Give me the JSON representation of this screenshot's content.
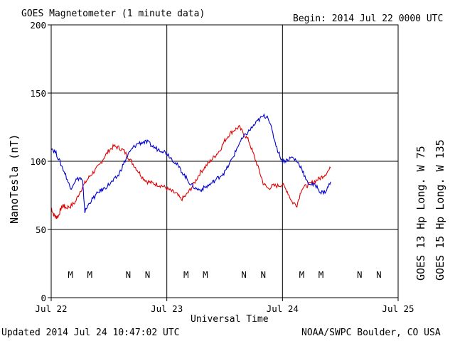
{
  "header": {
    "title": "GOES Magnetometer (1 minute data)",
    "begin": "Begin:  2014 Jul 22 0000 UTC"
  },
  "footer": {
    "updated": "Updated 2014 Jul 24 10:47:02 UTC",
    "credit": "NOAA/SWPC Boulder, CO USA"
  },
  "colors": {
    "goes13": "#e00000",
    "goes15": "#0000d0",
    "axis": "#000000"
  },
  "chart_data": {
    "type": "line",
    "ylabel": "NanoTesla (nT)",
    "xlabel": "Universal Time",
    "ylim": [
      0,
      200
    ],
    "xlim": [
      0,
      72
    ],
    "x_units": "hours since 2014 Jul 22 0000 UTC",
    "yticks": [
      0,
      50,
      100,
      150,
      200
    ],
    "xticks": [
      {
        "x": 0,
        "label": "Jul 22"
      },
      {
        "x": 24,
        "label": "Jul 23"
      },
      {
        "x": 48,
        "label": "Jul 24"
      },
      {
        "x": 72,
        "label": "Jul 25"
      }
    ],
    "grid": true,
    "legend_position": "right (vertical)",
    "series": [
      {
        "name": "GOES 13 Hp  Long. W 75",
        "color": "#e00000",
        "x": [
          0,
          0.5,
          1.0,
          1.5,
          2.0,
          2.5,
          3,
          4,
          5,
          6,
          7,
          8,
          9,
          10,
          11,
          12,
          13,
          14,
          15,
          16,
          17,
          18,
          19,
          20,
          21,
          22,
          23,
          24,
          25,
          26,
          27,
          28,
          29,
          30,
          31,
          32,
          33,
          34,
          35,
          36,
          37,
          38,
          39,
          40,
          41,
          42,
          43,
          44,
          45,
          46,
          47,
          48,
          49,
          50,
          51,
          52,
          53,
          54,
          55,
          56,
          57,
          58
        ],
        "y": [
          66,
          61,
          59,
          60,
          65,
          68,
          66,
          67,
          70,
          78,
          84,
          89,
          93,
          97,
          103,
          108,
          111,
          110,
          108,
          103,
          98,
          93,
          88,
          85,
          84,
          83,
          82,
          80,
          78,
          76,
          72,
          75,
          80,
          86,
          92,
          96,
          100,
          104,
          108,
          115,
          120,
          123,
          125,
          120,
          115,
          105,
          95,
          84,
          80,
          82,
          82,
          83,
          78,
          70,
          68,
          80,
          82,
          84,
          86,
          88,
          91,
          95
        ]
      },
      {
        "name": "GOES 15 Hp  Long. W 135",
        "color": "#0000d0",
        "x": [
          0,
          1,
          2,
          3,
          4,
          5,
          6,
          6.5,
          7,
          8,
          9,
          10,
          11,
          12,
          13,
          14,
          15,
          16,
          17,
          18,
          19,
          20,
          21,
          22,
          23,
          24,
          25,
          26,
          27,
          28,
          29,
          30,
          31,
          32,
          33,
          34,
          35,
          36,
          37,
          38,
          39,
          40,
          41,
          42,
          43,
          44,
          45,
          46,
          47,
          48,
          49,
          50,
          51,
          52,
          53,
          54,
          55,
          56,
          57,
          58
        ],
        "y": [
          110,
          106,
          98,
          90,
          80,
          86,
          88,
          85,
          63,
          70,
          74,
          78,
          80,
          83,
          86,
          90,
          98,
          105,
          110,
          113,
          114,
          114,
          111,
          109,
          108,
          106,
          102,
          98,
          93,
          88,
          83,
          80,
          79,
          81,
          83,
          86,
          89,
          92,
          98,
          105,
          113,
          118,
          122,
          126,
          130,
          133,
          133,
          120,
          108,
          100,
          101,
          103,
          100,
          95,
          85,
          83,
          82,
          77,
          78,
          85
        ]
      }
    ],
    "noon_midnight_markers": [
      {
        "x": 4,
        "label": "M",
        "color": "#e00000"
      },
      {
        "x": 8,
        "label": "M",
        "color": "#0000d0"
      },
      {
        "x": 16,
        "label": "N",
        "color": "#e00000"
      },
      {
        "x": 20,
        "label": "N",
        "color": "#0000d0"
      },
      {
        "x": 28,
        "label": "M",
        "color": "#e00000"
      },
      {
        "x": 32,
        "label": "M",
        "color": "#0000d0"
      },
      {
        "x": 40,
        "label": "N",
        "color": "#e00000"
      },
      {
        "x": 44,
        "label": "N",
        "color": "#0000d0"
      },
      {
        "x": 52,
        "label": "M",
        "color": "#e00000"
      },
      {
        "x": 56,
        "label": "M",
        "color": "#0000d0"
      },
      {
        "x": 64,
        "label": "N",
        "color": "#e00000"
      },
      {
        "x": 68,
        "label": "N",
        "color": "#0000d0"
      }
    ]
  }
}
